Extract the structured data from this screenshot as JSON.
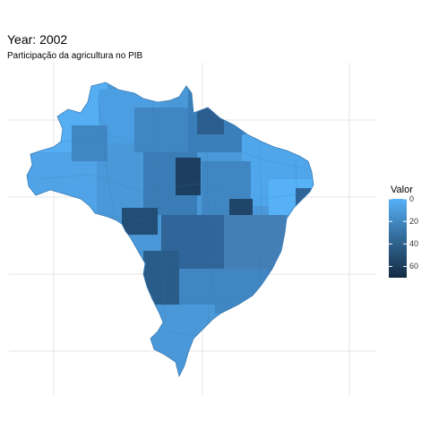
{
  "title": "Year: 2002",
  "subtitle": "Participação da agricultura no PIB",
  "legend": {
    "title": "Valor",
    "ticks": [
      "0",
      "20",
      "40",
      "60"
    ],
    "tick_values": [
      0,
      20,
      40,
      60
    ],
    "range": [
      0,
      70
    ],
    "colors": {
      "low": "#56B1F7",
      "high": "#132B43"
    }
  },
  "map": {
    "type": "choropleth",
    "region": "Brazil municipalities",
    "grid": true,
    "fill_scale": "continuous",
    "background": "#ffffff",
    "grid_color": "#e6e6e6"
  }
}
